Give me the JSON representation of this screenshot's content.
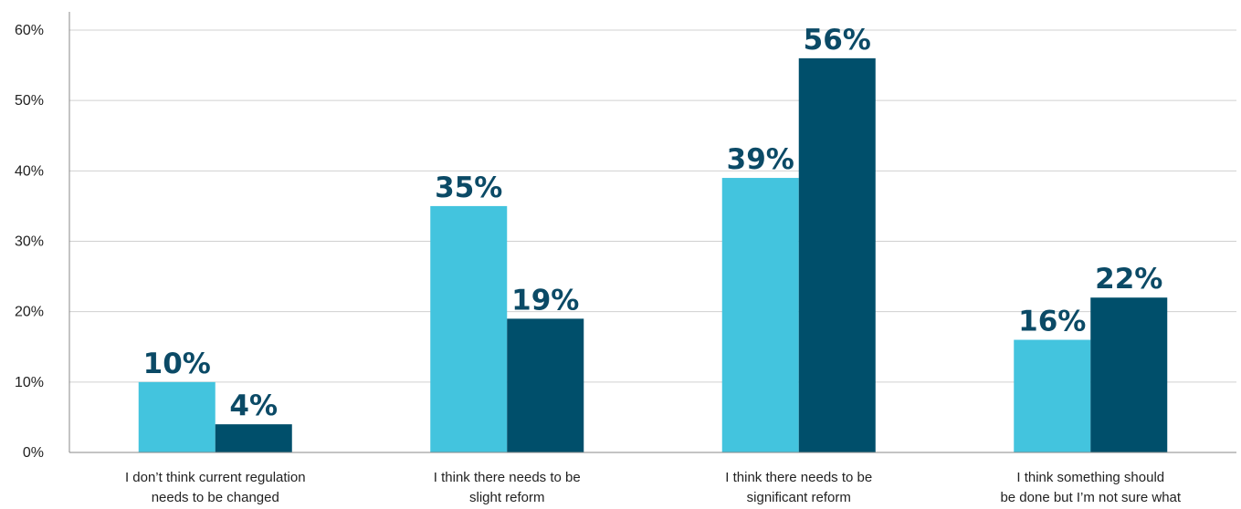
{
  "chart_data": {
    "type": "bar",
    "categories": [
      [
        "I don’t think current regulation",
        "needs to be changed"
      ],
      [
        "I think there needs to be",
        "slight reform"
      ],
      [
        "I think there needs to be",
        "significant reform"
      ],
      [
        "I think something should",
        "be done but I’m not sure what"
      ]
    ],
    "series": [
      {
        "values": [
          10,
          35,
          39,
          16
        ],
        "value_labels": [
          "10%",
          "35%",
          "39%",
          "16%"
        ],
        "color": "#43c4de"
      },
      {
        "values": [
          4,
          19,
          56,
          22
        ],
        "value_labels": [
          "4%",
          "19%",
          "56%",
          "22%"
        ],
        "color": "#004f6b"
      }
    ],
    "ylim": [
      0,
      60
    ],
    "yticks": [
      0,
      10,
      20,
      30,
      40,
      50,
      60
    ],
    "ytick_labels": [
      "0%",
      "10%",
      "20%",
      "30%",
      "40%",
      "50%",
      "60%"
    ],
    "grid": true,
    "title": "",
    "xlabel": "",
    "ylabel": ""
  }
}
